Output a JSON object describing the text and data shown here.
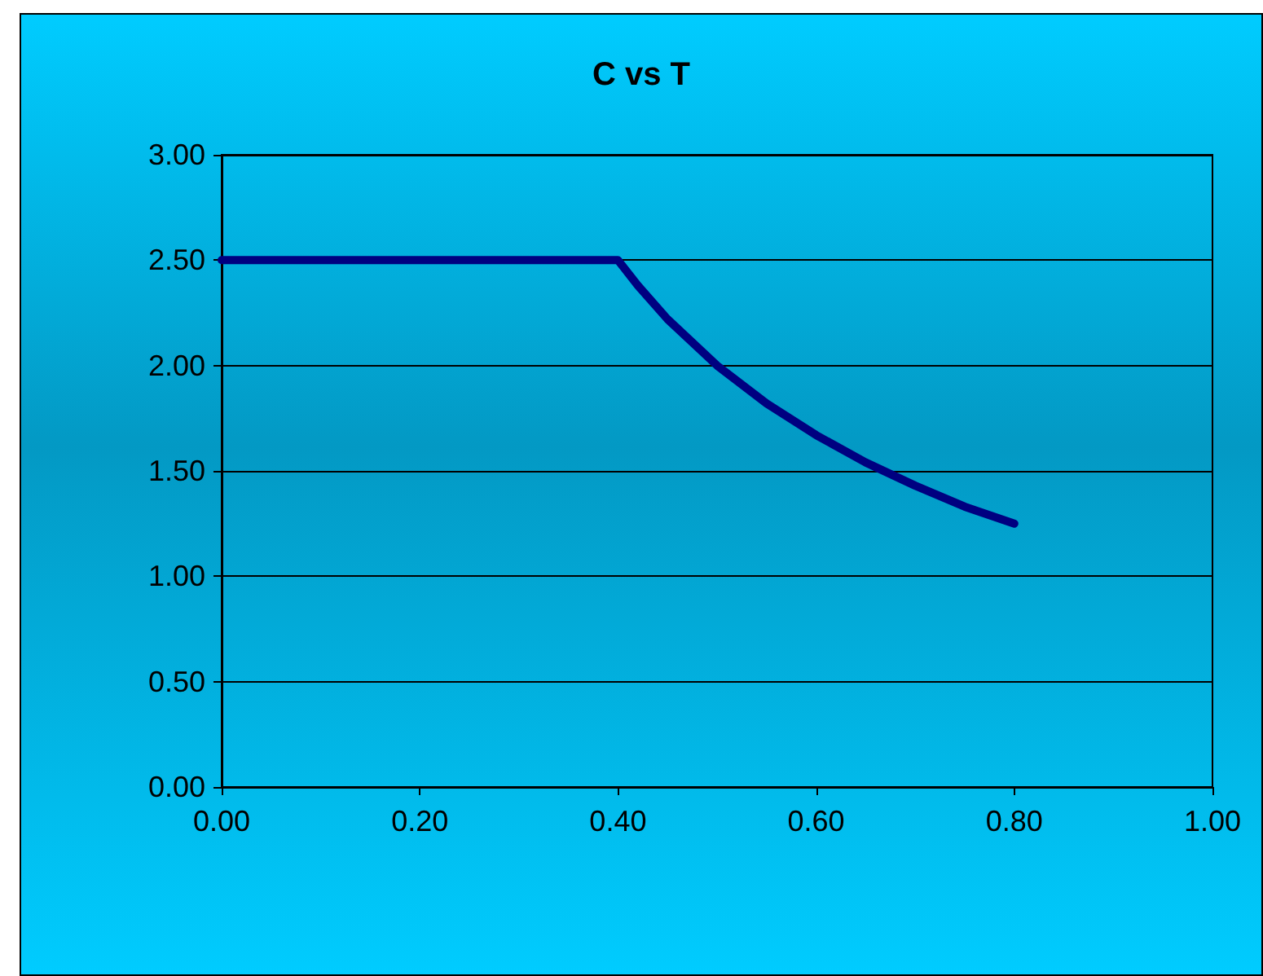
{
  "chart_data": {
    "type": "line",
    "title": "C vs T",
    "x": [
      0,
      0.1,
      0.2,
      0.3,
      0.4,
      0.42,
      0.45,
      0.5,
      0.55,
      0.6,
      0.65,
      0.7,
      0.75,
      0.8
    ],
    "series": [
      {
        "color": "#000080",
        "values": [
          2.5,
          2.5,
          2.5,
          2.5,
          2.5,
          2.38,
          2.22,
          2.0,
          1.82,
          1.67,
          1.54,
          1.43,
          1.33,
          1.25
        ]
      }
    ],
    "xlim": [
      0,
      1
    ],
    "xticks": [
      {
        "value": 0,
        "label": "0.00"
      },
      {
        "value": 0.2,
        "label": "0.20"
      },
      {
        "value": 0.4,
        "label": "0.40"
      },
      {
        "value": 0.6,
        "label": "0.60"
      },
      {
        "value": 0.8,
        "label": "0.80"
      },
      {
        "value": 1,
        "label": "1.00"
      }
    ],
    "ylim": [
      0,
      3
    ],
    "yticks": [
      {
        "value": 0,
        "label": "0.00"
      },
      {
        "value": 0.5,
        "label": "0.50"
      },
      {
        "value": 1,
        "label": "1.00"
      },
      {
        "value": 1.5,
        "label": "1.50"
      },
      {
        "value": 2,
        "label": "2.00"
      },
      {
        "value": 2.5,
        "label": "2.50"
      },
      {
        "value": 3,
        "label": "3.00"
      }
    ],
    "grid": "y",
    "marker": "none",
    "line_style": "solid"
  }
}
